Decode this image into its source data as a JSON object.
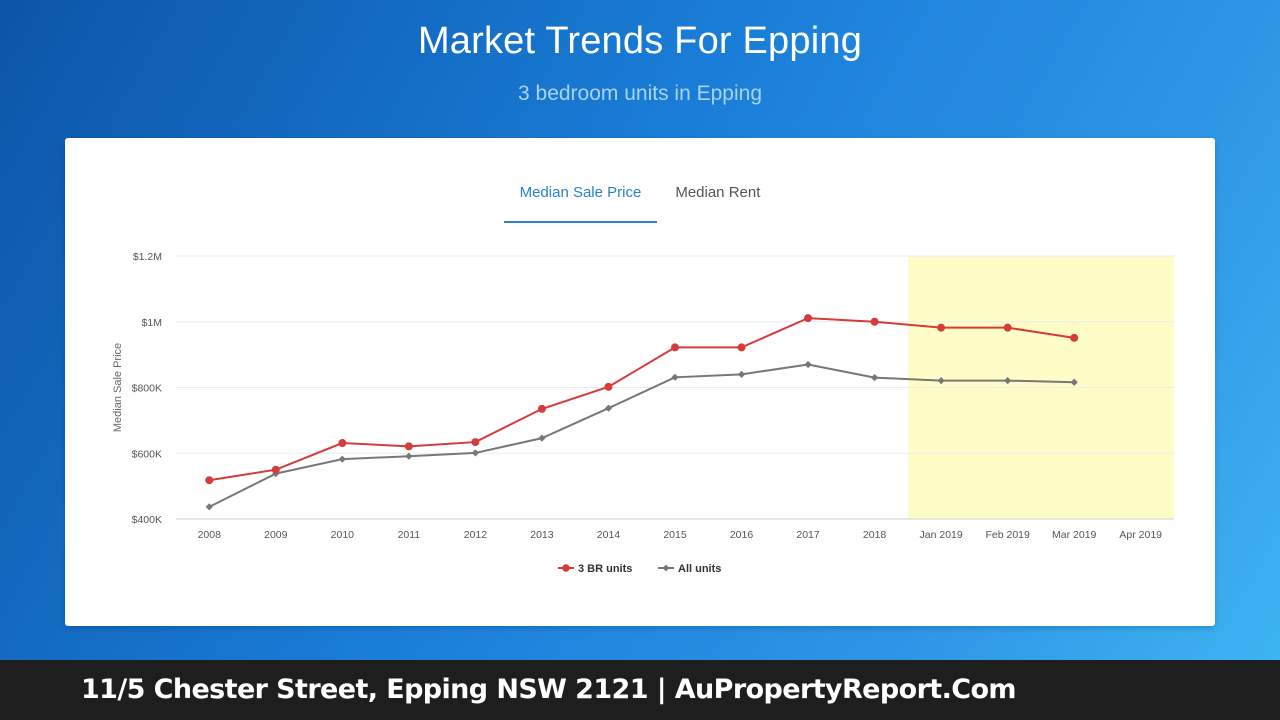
{
  "header": {
    "title": "Market Trends For Epping",
    "subtitle": "3 bedroom units in Epping"
  },
  "tabs": [
    {
      "label": "Median Sale Price",
      "active": true
    },
    {
      "label": "Median Rent",
      "active": false
    }
  ],
  "footer": {
    "text": "11/5 Chester Street, Epping NSW 2121 | AuPropertyReport.Com"
  },
  "chart_data": {
    "type": "line",
    "ylabel": "Median Sale Price",
    "xlabel": "",
    "categories": [
      "2008",
      "2009",
      "2010",
      "2011",
      "2012",
      "2013",
      "2014",
      "2015",
      "2016",
      "2017",
      "2018",
      "Jan 2019",
      "Feb 2019",
      "Mar 2019",
      "Apr 2019"
    ],
    "ylim": [
      400000,
      1200000
    ],
    "yticks": [
      {
        "value": 400000,
        "label": "$400K"
      },
      {
        "value": 600000,
        "label": "$600K"
      },
      {
        "value": 800000,
        "label": "$800K"
      },
      {
        "value": 1000000,
        "label": "$1M"
      },
      {
        "value": 1200000,
        "label": "$1.2M"
      }
    ],
    "highlight_region": {
      "from": "Jan 2019",
      "to": "Apr 2019",
      "color": "#fefdc8"
    },
    "grid": true,
    "legend_position": "bottom-center",
    "series": [
      {
        "name": "3 BR units",
        "color": "#d63b3b",
        "marker": "circle",
        "values": [
          518000,
          550000,
          631000,
          621000,
          634000,
          735000,
          802000,
          922000,
          922000,
          1011000,
          1000000,
          982000,
          982000,
          951000,
          null
        ]
      },
      {
        "name": "All units",
        "color": "#777777",
        "marker": "diamond",
        "values": [
          437000,
          538000,
          582000,
          591000,
          601000,
          646000,
          737000,
          831000,
          840000,
          870000,
          830000,
          821000,
          821000,
          816000,
          null
        ]
      }
    ]
  }
}
